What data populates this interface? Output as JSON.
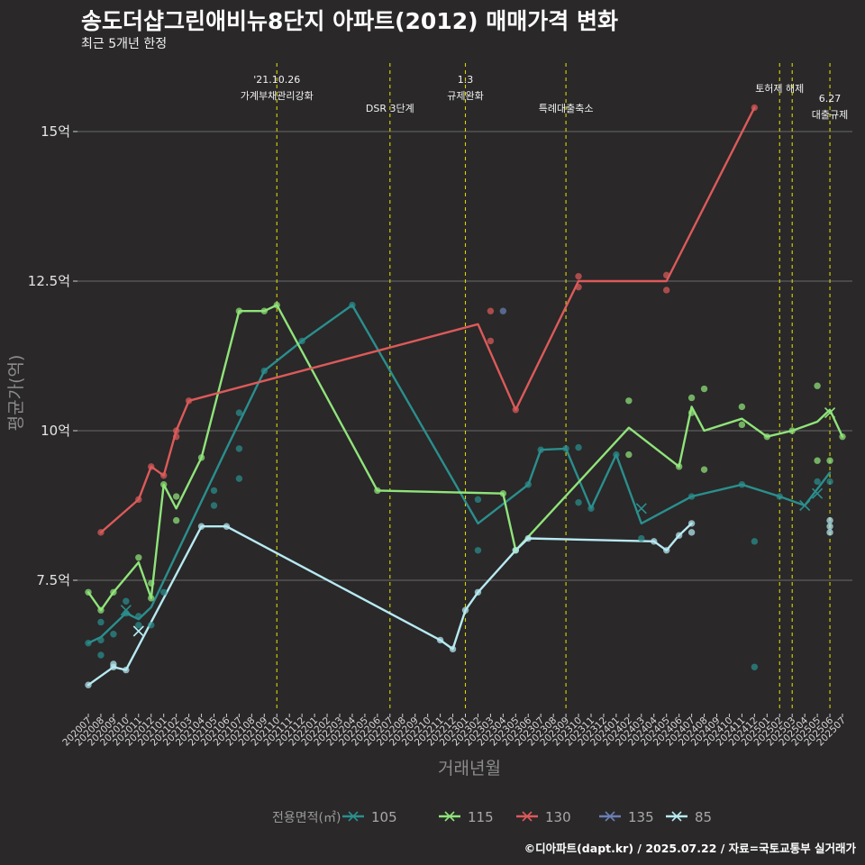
{
  "chart_data": {
    "type": "line",
    "title": "송도더샵그린애비뉴8단지 아파트(2012) 매매가격 변화",
    "subtitle": "최근 5개년 한정",
    "xlabel": "거래년월",
    "ylabel": "평균가(억)",
    "caption": "©디아파트(dapt.kr) / 2025.07.22 / 자료=국토교통부 실거래가",
    "categories": [
      "202007",
      "202008",
      "202009",
      "202010",
      "202011",
      "202012",
      "202101",
      "202102",
      "202103",
      "202104",
      "202105",
      "202106",
      "202107",
      "202108",
      "202109",
      "202110",
      "202111",
      "202112",
      "202201",
      "202202",
      "202203",
      "202204",
      "202205",
      "202206",
      "202207",
      "202208",
      "202209",
      "202210",
      "202211",
      "202212",
      "202301",
      "202302",
      "202303",
      "202304",
      "202305",
      "202306",
      "202307",
      "202308",
      "202309",
      "202310",
      "202311",
      "202312",
      "202401",
      "202402",
      "202403",
      "202404",
      "202405",
      "202406",
      "202407",
      "202408",
      "202409",
      "202410",
      "202411",
      "202412",
      "202501",
      "202502",
      "202503",
      "202504",
      "202505",
      "202506",
      "202507"
    ],
    "y_ticks": [
      {
        "value": 7.5,
        "label": "7.5억"
      },
      {
        "value": 10,
        "label": "10억"
      },
      {
        "value": 12.5,
        "label": "12.5억"
      },
      {
        "value": 15,
        "label": "15억"
      }
    ],
    "ylim": [
      5.4,
      16.2
    ],
    "grid": "horizontal",
    "legend_position": "bottom",
    "legend_title": "전용면적(㎡)",
    "series": [
      {
        "name": "105",
        "color": "#2a8f8d",
        "line": [
          [
            "202007",
            6.45
          ],
          [
            "202008",
            6.55
          ],
          [
            "202010",
            6.95
          ],
          [
            "202011",
            6.85
          ],
          [
            "202012",
            7.05
          ],
          [
            "202106",
            9.7
          ],
          [
            "202109",
            11.0
          ],
          [
            "202112",
            11.5
          ],
          [
            "202204",
            12.1
          ],
          [
            "202302",
            8.45
          ],
          [
            "202306",
            9.1
          ],
          [
            "202307",
            9.68
          ],
          [
            "202309",
            9.7
          ],
          [
            "202311",
            8.7
          ],
          [
            "202401",
            9.6
          ],
          [
            "202403",
            8.45
          ],
          [
            "202407",
            8.9
          ],
          [
            "202411",
            9.1
          ],
          [
            "202502",
            8.9
          ],
          [
            "202504",
            8.75
          ],
          [
            "202506",
            9.3
          ]
        ],
        "points": [
          [
            "202007",
            6.45
          ],
          [
            "202008",
            6.8
          ],
          [
            "202008",
            6.5
          ],
          [
            "202008",
            6.25
          ],
          [
            "202009",
            6.6
          ],
          [
            "202010",
            7.15
          ],
          [
            "202010",
            6.95
          ],
          [
            "202011",
            6.9
          ],
          [
            "202011",
            6.75
          ],
          [
            "202012",
            6.75
          ],
          [
            "202101",
            7.3
          ],
          [
            "202105",
            8.75
          ],
          [
            "202105",
            9.0
          ],
          [
            "202107",
            10.3
          ],
          [
            "202107",
            9.2
          ],
          [
            "202107",
            9.7
          ],
          [
            "202109",
            11.0
          ],
          [
            "202112",
            11.5
          ],
          [
            "202204",
            12.1
          ],
          [
            "202302",
            8.85
          ],
          [
            "202302",
            8.0
          ],
          [
            "202306",
            9.1
          ],
          [
            "202307",
            9.68
          ],
          [
            "202309",
            9.7
          ],
          [
            "202310",
            9.72
          ],
          [
            "202310",
            8.8
          ],
          [
            "202311",
            8.7
          ],
          [
            "202401",
            9.6
          ],
          [
            "202403",
            8.2
          ],
          [
            "202407",
            8.9
          ],
          [
            "202411",
            9.1
          ],
          [
            "202412",
            6.05
          ],
          [
            "202412",
            8.15
          ],
          [
            "202502",
            8.9
          ],
          [
            "202505",
            9.15
          ],
          [
            "202506",
            9.15
          ]
        ],
        "crosses": [
          [
            "202010",
            7.0
          ],
          [
            "202011",
            6.65
          ],
          [
            "202403",
            8.7
          ],
          [
            "202504",
            8.75
          ],
          [
            "202505",
            8.95
          ]
        ]
      },
      {
        "name": "115",
        "color": "#90e47a",
        "line": [
          [
            "202007",
            7.3
          ],
          [
            "202008",
            7.0
          ],
          [
            "202009",
            7.3
          ],
          [
            "202011",
            7.8
          ],
          [
            "202012",
            7.2
          ],
          [
            "202101",
            9.1
          ],
          [
            "202102",
            8.7
          ],
          [
            "202104",
            9.55
          ],
          [
            "202107",
            12.0
          ],
          [
            "202109",
            12.0
          ],
          [
            "202110",
            12.1
          ],
          [
            "202206",
            9.0
          ],
          [
            "202304",
            8.95
          ],
          [
            "202305",
            8.0
          ],
          [
            "202402",
            10.05
          ],
          [
            "202406",
            9.4
          ],
          [
            "202407",
            10.4
          ],
          [
            "202408",
            10.0
          ],
          [
            "202411",
            10.2
          ],
          [
            "202501",
            9.9
          ],
          [
            "202503",
            10.0
          ],
          [
            "202505",
            10.15
          ],
          [
            "202506",
            10.35
          ],
          [
            "202507",
            9.9
          ]
        ],
        "points": [
          [
            "202007",
            7.3
          ],
          [
            "202008",
            7.0
          ],
          [
            "202009",
            7.3
          ],
          [
            "202011",
            7.88
          ],
          [
            "202012",
            7.2
          ],
          [
            "202012",
            7.45
          ],
          [
            "202101",
            9.1
          ],
          [
            "202102",
            8.9
          ],
          [
            "202102",
            8.5
          ],
          [
            "202104",
            9.55
          ],
          [
            "202107",
            12.0
          ],
          [
            "202109",
            12.0
          ],
          [
            "202110",
            12.1
          ],
          [
            "202206",
            9.0
          ],
          [
            "202304",
            8.95
          ],
          [
            "202305",
            8.0
          ],
          [
            "202402",
            10.5
          ],
          [
            "202402",
            9.6
          ],
          [
            "202406",
            9.4
          ],
          [
            "202407",
            10.55
          ],
          [
            "202407",
            10.3
          ],
          [
            "202408",
            10.7
          ],
          [
            "202408",
            9.35
          ],
          [
            "202411",
            10.4
          ],
          [
            "202411",
            10.1
          ],
          [
            "202501",
            9.9
          ],
          [
            "202503",
            10.0
          ],
          [
            "202505",
            10.75
          ],
          [
            "202505",
            9.5
          ],
          [
            "202506",
            9.5
          ],
          [
            "202507",
            9.9
          ]
        ],
        "crosses": [
          [
            "202506",
            10.3
          ]
        ]
      },
      {
        "name": "130",
        "color": "#dd5a5a",
        "line": [
          [
            "202008",
            8.3
          ],
          [
            "202011",
            8.85
          ],
          [
            "202012",
            9.4
          ],
          [
            "202101",
            9.25
          ],
          [
            "202102",
            10.0
          ],
          [
            "202103",
            10.5
          ],
          [
            "202302",
            11.78
          ],
          [
            "202305",
            10.35
          ],
          [
            "202310",
            12.5
          ],
          [
            "202405",
            12.5
          ],
          [
            "202412",
            15.4
          ]
        ],
        "points": [
          [
            "202008",
            8.3
          ],
          [
            "202011",
            8.85
          ],
          [
            "202012",
            9.4
          ],
          [
            "202101",
            9.25
          ],
          [
            "202102",
            10.0
          ],
          [
            "202102",
            9.9
          ],
          [
            "202103",
            10.5
          ],
          [
            "202303",
            12.0
          ],
          [
            "202303",
            11.5
          ],
          [
            "202305",
            10.35
          ],
          [
            "202310",
            12.58
          ],
          [
            "202310",
            12.4
          ],
          [
            "202405",
            12.6
          ],
          [
            "202405",
            12.35
          ],
          [
            "202412",
            15.4
          ]
        ],
        "crosses": []
      },
      {
        "name": "135",
        "color": "#6a7fb5",
        "line": [],
        "points": [
          [
            "202304",
            12.0
          ]
        ],
        "crosses": []
      },
      {
        "name": "85",
        "color": "#b7eaf2",
        "line": [
          [
            "202007",
            5.75
          ],
          [
            "202009",
            6.05
          ],
          [
            "202010",
            6.0
          ],
          [
            "202104",
            8.4
          ],
          [
            "202106",
            8.4
          ],
          [
            "202211",
            6.5
          ],
          [
            "202212",
            6.35
          ],
          [
            "202301",
            7.0
          ],
          [
            "202302",
            7.3
          ],
          [
            "202305",
            8.0
          ],
          [
            "202306",
            8.2
          ],
          [
            "202404",
            8.15
          ],
          [
            "202405",
            8.0
          ],
          [
            "202406",
            8.25
          ],
          [
            "202407",
            8.45
          ]
        ],
        "points": [
          [
            "202007",
            5.75
          ],
          [
            "202009",
            6.05
          ],
          [
            "202009",
            6.1
          ],
          [
            "202010",
            6.0
          ],
          [
            "202104",
            8.4
          ],
          [
            "202106",
            8.4
          ],
          [
            "202211",
            6.5
          ],
          [
            "202212",
            6.35
          ],
          [
            "202301",
            7.0
          ],
          [
            "202302",
            7.3
          ],
          [
            "202305",
            8.0
          ],
          [
            "202306",
            8.2
          ],
          [
            "202404",
            8.15
          ],
          [
            "202405",
            8.0
          ],
          [
            "202406",
            8.25
          ],
          [
            "202407",
            8.45
          ],
          [
            "202407",
            8.3
          ],
          [
            "202506",
            8.5
          ],
          [
            "202506",
            8.4
          ],
          [
            "202506",
            8.3
          ]
        ],
        "crosses": [
          [
            "202011",
            6.65
          ]
        ]
      }
    ],
    "annotations": [
      {
        "x": "202110",
        "text": [
          "'21.10.26",
          "가계부채관리강화"
        ]
      },
      {
        "x": "202207",
        "text": [
          "DSR 3단계"
        ]
      },
      {
        "x": "202301",
        "text": [
          "1.3",
          "규제완화"
        ]
      },
      {
        "x": "202309",
        "text": [
          "특례대출축소"
        ]
      },
      {
        "x": "202502",
        "text": [
          "토허제 해제"
        ]
      },
      {
        "x": "202503",
        "text": []
      },
      {
        "x": "202506",
        "text": [
          "6.27",
          "대출규제"
        ]
      }
    ]
  }
}
